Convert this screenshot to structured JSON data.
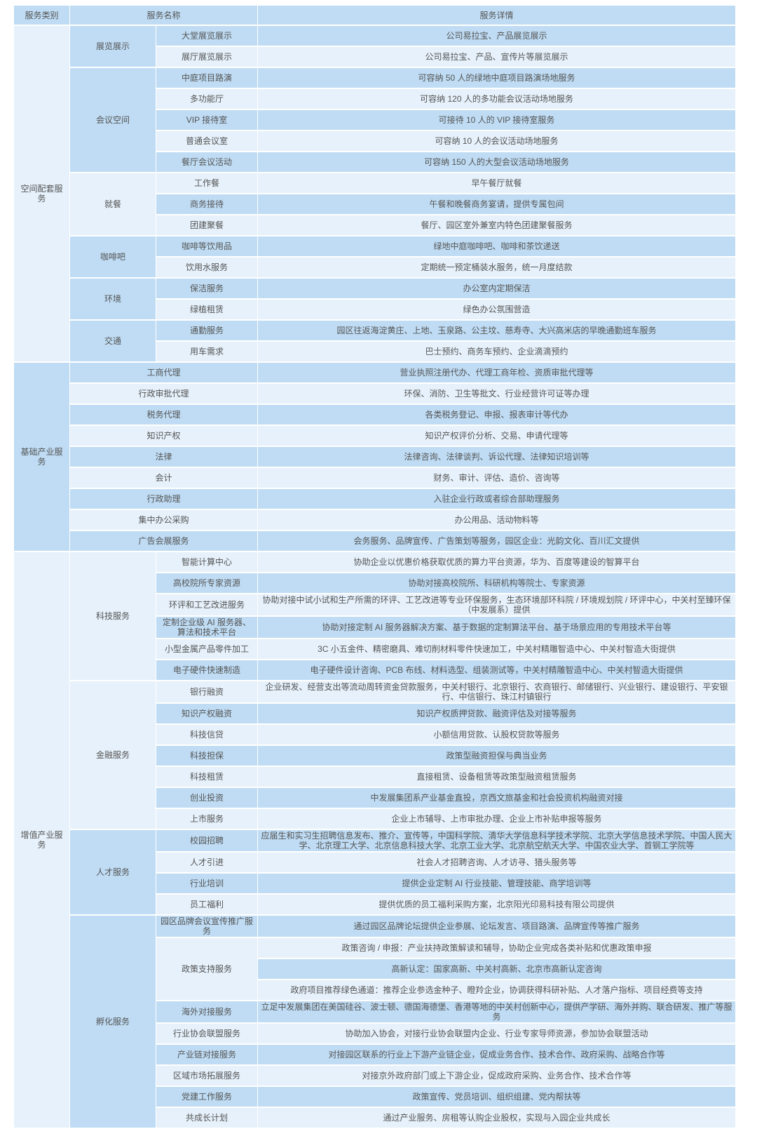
{
  "header": {
    "category": "服务类别",
    "name": "服务名称",
    "detail": "服务详情"
  },
  "colors": {
    "dark_row": "#bfdcf4",
    "light_row": "#e6f1fb",
    "text": "#555555"
  },
  "categories": [
    {
      "name": "空间配套服务",
      "groups": [
        {
          "name": "展览展示",
          "items": [
            {
              "name": "大堂展览展示",
              "details": [
                "公司易拉宝、产品展览展示"
              ]
            },
            {
              "name": "展厅展览展示",
              "details": [
                "公司易拉宝、产品、宣传片等展览展示"
              ]
            }
          ]
        },
        {
          "name": "会议空间",
          "items": [
            {
              "name": "中庭项目路演",
              "details": [
                "可容纳 50 人的绿地中庭项目路演场地服务"
              ]
            },
            {
              "name": "多功能厅",
              "details": [
                "可容纳 120 人的多功能会议活动场地服务"
              ]
            },
            {
              "name": "VIP 接待室",
              "details": [
                "可接待 10 人的 VIP 接待室服务"
              ]
            },
            {
              "name": "普通会议室",
              "details": [
                "可容纳 10 人的会议活动场地服务"
              ]
            },
            {
              "name": "餐厅会议活动",
              "details": [
                "可容纳 150 人的大型会议活动场地服务"
              ]
            }
          ]
        },
        {
          "name": "就餐",
          "items": [
            {
              "name": "工作餐",
              "details": [
                "早午餐厅就餐"
              ]
            },
            {
              "name": "商务接待",
              "details": [
                "午餐和晚餐商务宴请，提供专属包间"
              ]
            },
            {
              "name": "团建聚餐",
              "details": [
                "餐厅、园区室外兼室内特色团建聚餐服务"
              ]
            }
          ]
        },
        {
          "name": "咖啡吧",
          "items": [
            {
              "name": "咖啡等饮用品",
              "details": [
                "绿地中庭咖啡吧、咖啡和茶饮递送"
              ]
            },
            {
              "name": "饮用水服务",
              "details": [
                "定期统一预定桶装水服务，统一月度结款"
              ]
            }
          ]
        },
        {
          "name": "环境",
          "items": [
            {
              "name": "保洁服务",
              "details": [
                "办公室内定期保洁"
              ]
            },
            {
              "name": "绿植租赁",
              "details": [
                "绿色办公氛围营造"
              ]
            }
          ]
        },
        {
          "name": "交通",
          "items": [
            {
              "name": "通勤服务",
              "details": [
                "园区往返海淀黄庄、上地、玉泉路、公主坟、慈寿寺、大兴高米店的早晚通勤班车服务"
              ]
            },
            {
              "name": "用车需求",
              "details": [
                "巴士预约、商务车预约、企业滴滴预约"
              ]
            }
          ]
        }
      ]
    },
    {
      "name": "基础产业服务",
      "items": [
        {
          "name": "工商代理",
          "details": [
            "营业执照注册代办、代理工商年检、资质审批代理等"
          ]
        },
        {
          "name": "行政审批代理",
          "details": [
            "环保、消防、卫生等批文、行业经营许可证等办理"
          ]
        },
        {
          "name": "税务代理",
          "details": [
            "各类税务登记、申报、报表审计等代办"
          ]
        },
        {
          "name": "知识产权",
          "details": [
            "知识产权评价分析、交易、申请代理等"
          ]
        },
        {
          "name": "法律",
          "details": [
            "法律咨询、法律谈判、诉讼代理、法律知识培训等"
          ]
        },
        {
          "name": "会计",
          "details": [
            "财务、审计、评估、造价、咨询等"
          ]
        },
        {
          "name": "行政助理",
          "details": [
            "入驻企业行政或者综合部助理服务"
          ]
        },
        {
          "name": "集中办公采购",
          "details": [
            "办公用品、活动物料等"
          ]
        },
        {
          "name": "广告会展服务",
          "details": [
            "会务服务、品牌宣传、广告策划等服务，园区企业：光韵文化、百川汇文提供"
          ]
        }
      ]
    },
    {
      "name": "增值产业服务",
      "groups": [
        {
          "name": "科技服务",
          "items": [
            {
              "name": "智能计算中心",
              "details": [
                "协助企业以优惠价格获取优质的算力平台资源，华为、百度等建设的智算平台"
              ]
            },
            {
              "name": "高校院所专家资源",
              "details": [
                "协助对接高校院所、科研机构等院士、专家资源"
              ]
            },
            {
              "name": "环评和工艺改进服务",
              "details": [
                "协助对接中试小试和生产所需的环评、工艺改进等专业环保服务，生态环境部环科院 / 环境规划院 / 环评中心，中关村至臻环保（中发展系）提供"
              ]
            },
            {
              "name": "定制企业级 AI 服务器、算法和技术平台",
              "details": [
                "协助对接定制 AI 服务器解决方案、基于数据的定制算法平台、基于场景应用的专用技术平台等"
              ]
            },
            {
              "name": "小型金属产品零件加工",
              "details": [
                "3C 小五金件、精密磨具、难切削材料零件快速加工，中关村精雕智造中心、中关村智造大街提供"
              ]
            },
            {
              "name": "电子硬件快速制造",
              "details": [
                "电子硬件设计咨询、PCB 布线、材料选型、组装测试等，中关村精雕智造中心、中关村智造大街提供"
              ]
            }
          ]
        },
        {
          "name": "金融服务",
          "items": [
            {
              "name": "银行融资",
              "details": [
                "企业研发、经营支出等流动周转资金贷款服务，中关村银行、北京银行、农商银行、邮储银行、兴业银行、建设银行、平安银行、中信银行、珠江村镇银行"
              ]
            },
            {
              "name": "知识产权融资",
              "details": [
                "知识产权质押贷款、融资评估及对接等服务"
              ]
            },
            {
              "name": "科技信贷",
              "details": [
                "小额信用贷款、认股权贷款等服务"
              ]
            },
            {
              "name": "科技担保",
              "details": [
                "政策型融资担保与典当业务"
              ]
            },
            {
              "name": "科技租赁",
              "details": [
                "直接租赁、设备租赁等政策型融资租赁服务"
              ]
            },
            {
              "name": "创业投资",
              "details": [
                "中发展集团系产业基金直投，京西文旅基金和社会投资机构融资对接"
              ]
            },
            {
              "name": "上市服务",
              "details": [
                "企业上市辅导、上市审批办理、企业上市补贴申报等服务"
              ]
            }
          ]
        },
        {
          "name": "人才服务",
          "items": [
            {
              "name": "校园招聘",
              "details": [
                "应届生和实习生招聘信息发布、推介、宣传等，中国科学院、清华大学信息科学技术学院、北京大学信息技术学院、中国人民大学、北京理工大学、北京信息科技大学、北京工业大学、北京航空航天大学、中国农业大学、首钢工学院等"
              ]
            },
            {
              "name": "人才引进",
              "details": [
                "社会人才招聘咨询、人才访寻、猎头服务等"
              ]
            },
            {
              "name": "行业培训",
              "details": [
                "提供企业定制 AI 行业技能、管理技能、商学培训等"
              ]
            },
            {
              "name": "员工福利",
              "details": [
                "提供优质的员工福利采购方案，北京阳光印易科技有限公司提供"
              ]
            }
          ]
        },
        {
          "name": "孵化服务",
          "items": [
            {
              "name": "园区品牌会议宣传推广服务",
              "details": [
                "通过园区品牌论坛提供企业参展、论坛发言、项目路演、品牌宣传等推广服务"
              ]
            },
            {
              "name": "政策支持服务",
              "details": [
                "政策咨询 / 申报：产业扶持政策解读和辅导，协助企业完成各类补贴和优惠政策申报",
                "高新认定：国家高新、中关村高新、北京市高新认定咨询",
                "政府项目推荐绿色通道：推荐企业参选金种子、瞪羚企业，协调获得科研补贴、人才落户指标、项目经费等支持"
              ]
            },
            {
              "name": "海外对接服务",
              "details": [
                "立足中发展集团在美国硅谷、波士顿、德国海德堡、香港等地的中关村创新中心，提供产学研、海外并购、联合研发、推广等服务"
              ]
            },
            {
              "name": "行业协会联盟服务",
              "details": [
                "协助加入协会，对接行业协会联盟内企业、行业专家导师资源，参加协会联盟活动"
              ]
            },
            {
              "name": "产业链对接服务",
              "details": [
                "对接园区联系的行业上下游产业链企业，促成业务合作、技术合作、政府采购、战略合作等"
              ]
            },
            {
              "name": "区域市场拓展服务",
              "details": [
                "对接京外政府部门或上下游企业，促成政府采购、业务合作、技术合作等"
              ]
            },
            {
              "name": "党建工作服务",
              "details": [
                "政策宣传、党员培训、组织组建、党内帮扶等"
              ]
            },
            {
              "name": "共成长计划",
              "details": [
                "通过产业服务、房租等认购企业股权，实现与入园企业共成长"
              ]
            }
          ]
        }
      ]
    }
  ]
}
